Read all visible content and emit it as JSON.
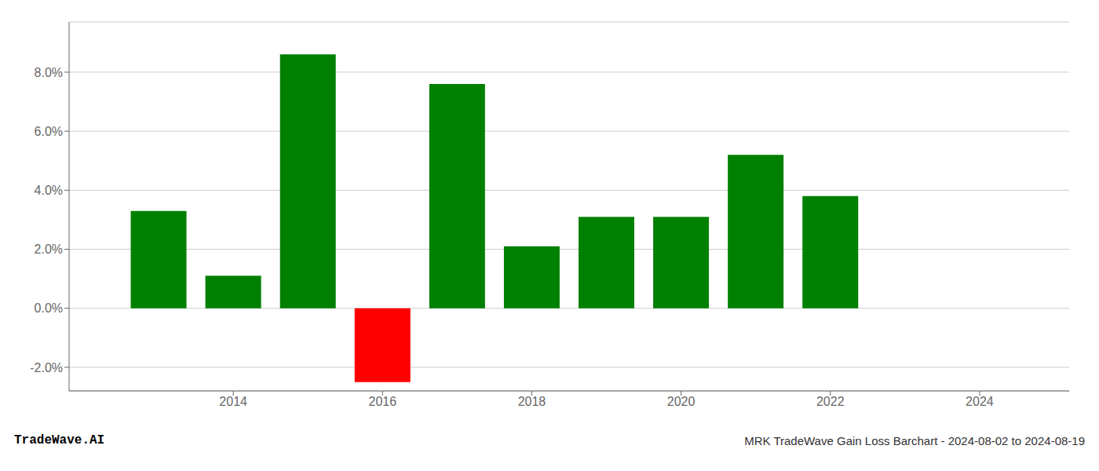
{
  "chart_data": {
    "type": "bar",
    "title": "MRK TradeWave Gain Loss Barchart - 2024-08-02 to 2024-08-19",
    "annotations": [
      "TradeWave.AI"
    ],
    "x": [
      2013,
      2014,
      2015,
      2016,
      2017,
      2018,
      2019,
      2020,
      2021,
      2022
    ],
    "values": [
      0.033,
      0.011,
      0.086,
      -0.025,
      0.076,
      0.021,
      0.031,
      0.031,
      0.052,
      0.038
    ],
    "colors": [
      "#008000",
      "#008000",
      "#008000",
      "#ff0000",
      "#008000",
      "#008000",
      "#008000",
      "#008000",
      "#008000",
      "#008000"
    ],
    "xlim": [
      2011.8,
      2025.2
    ],
    "xticks": [
      2014,
      2016,
      2018,
      2020,
      2022,
      2024
    ],
    "ylim": [
      -0.028,
      0.097
    ],
    "yticks": [
      {
        "value": -0.02,
        "label": "-2.0%"
      },
      {
        "value": 0.0,
        "label": "0.0%"
      },
      {
        "value": 0.02,
        "label": "2.0%"
      },
      {
        "value": 0.04,
        "label": "4.0%"
      },
      {
        "value": 0.06,
        "label": "6.0%"
      },
      {
        "value": 0.08,
        "label": "8.0%"
      }
    ],
    "grid": true
  }
}
